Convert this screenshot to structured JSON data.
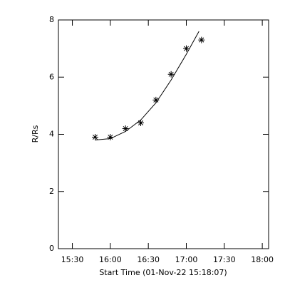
{
  "chart_data": {
    "type": "scatter",
    "x_label": "Start Time (01-Nov-22 15:18:07)",
    "y_label": "R/Rs",
    "x": [
      "15:48",
      "16:00",
      "16:12",
      "16:24",
      "16:36",
      "16:48",
      "17:00",
      "17:12"
    ],
    "values": [
      3.9,
      3.9,
      4.2,
      4.4,
      5.2,
      6.1,
      7.0,
      7.3
    ],
    "color": "#000000",
    "fit": {
      "x": [
        "15:48",
        "16:00",
        "16:12",
        "16:24",
        "16:36",
        "16:48",
        "17:00",
        "17:10"
      ],
      "values": [
        3.8,
        3.85,
        4.1,
        4.5,
        5.1,
        5.9,
        6.8,
        7.6
      ]
    },
    "xlim": [
      "15:19",
      "18:05"
    ],
    "xticks": [
      "15:30",
      "16:00",
      "16:30",
      "17:00",
      "17:30",
      "18:00"
    ],
    "ylim": [
      0,
      8
    ],
    "yticks": [
      0,
      2,
      4,
      6,
      8
    ]
  }
}
